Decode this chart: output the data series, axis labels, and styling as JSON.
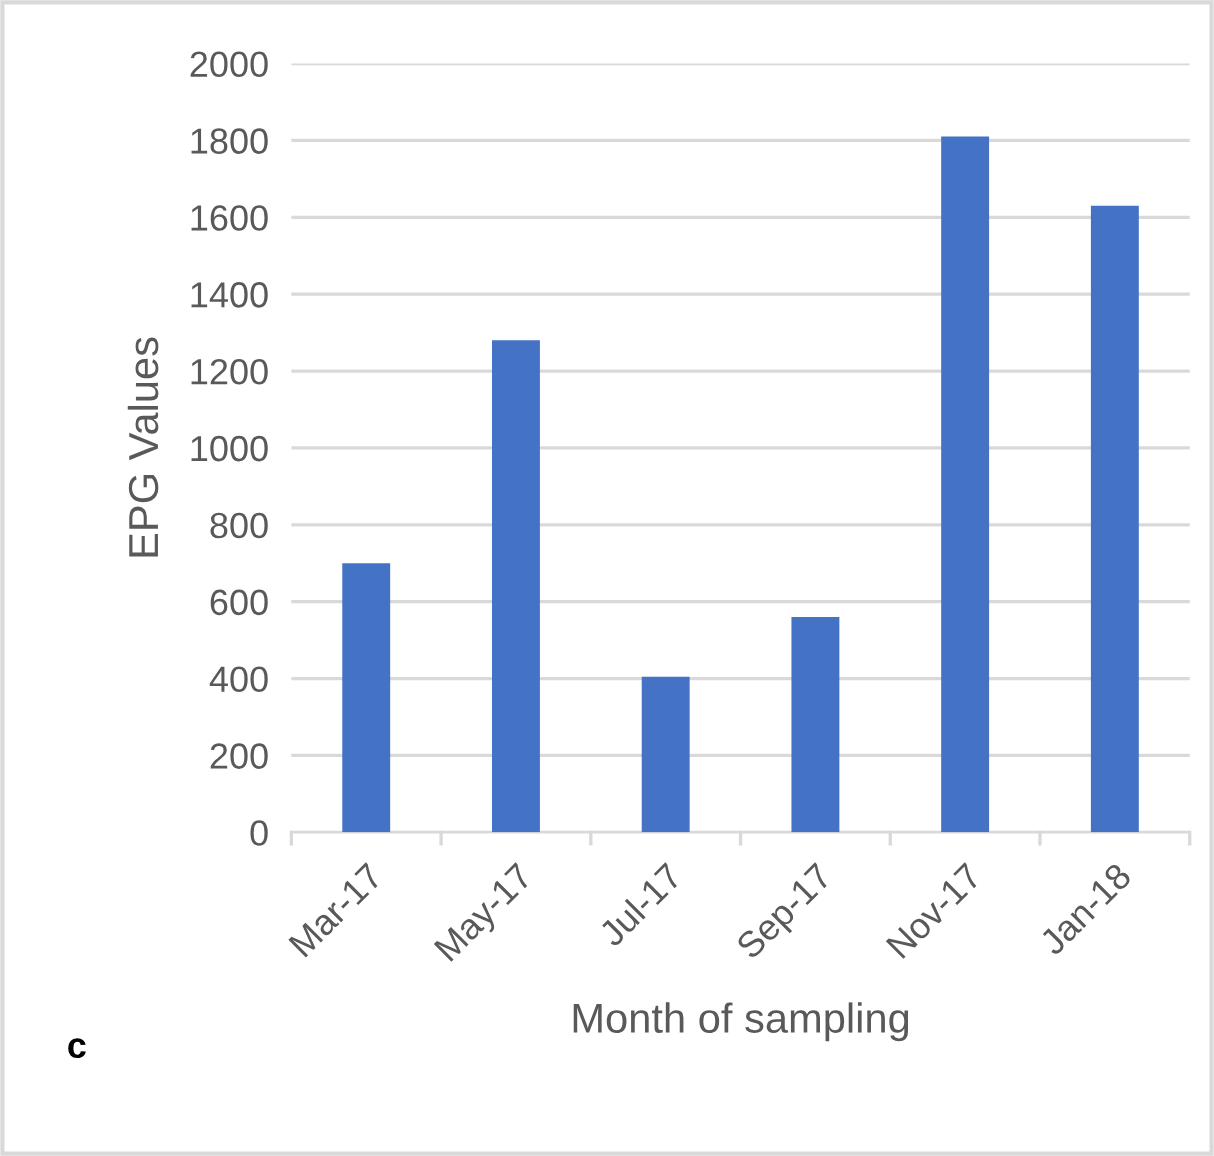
{
  "chart_data": {
    "type": "bar",
    "xlabel": "Month of sampling",
    "ylabel": "EPG Values",
    "categories": [
      "Mar-17",
      "May-17",
      "Jul-17",
      "Sep-17",
      "Nov-17",
      "Jan-18"
    ],
    "values": [
      700,
      1280,
      405,
      560,
      1810,
      1630
    ],
    "color": "#4472c4",
    "ylim": [
      0,
      2000
    ],
    "yticks": [
      0,
      200,
      400,
      600,
      800,
      1000,
      1200,
      1400,
      1600,
      1800,
      2000
    ],
    "grid": "y",
    "annotations": [
      "c"
    ]
  }
}
